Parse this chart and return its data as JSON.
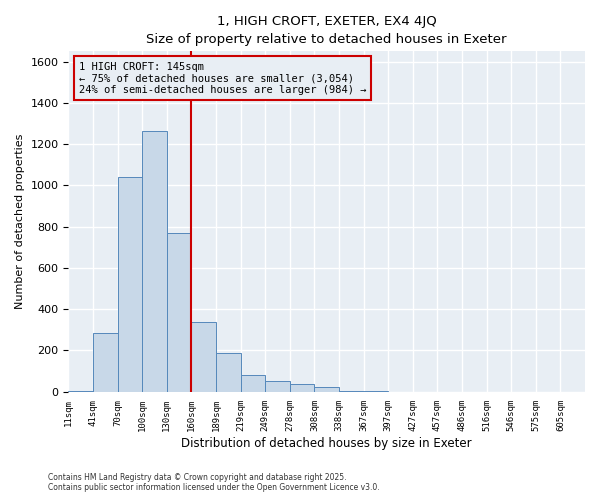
{
  "title": "1, HIGH CROFT, EXETER, EX4 4JQ",
  "subtitle": "Size of property relative to detached houses in Exeter",
  "xlabel": "Distribution of detached houses by size in Exeter",
  "ylabel": "Number of detached properties",
  "bin_labels": [
    "11sqm",
    "41sqm",
    "70sqm",
    "100sqm",
    "130sqm",
    "160sqm",
    "189sqm",
    "219sqm",
    "249sqm",
    "278sqm",
    "308sqm",
    "338sqm",
    "367sqm",
    "397sqm",
    "427sqm",
    "457sqm",
    "486sqm",
    "516sqm",
    "546sqm",
    "575sqm",
    "605sqm"
  ],
  "bar_heights": [
    5,
    285,
    1040,
    1265,
    770,
    335,
    185,
    80,
    50,
    35,
    22,
    5,
    1,
    0,
    0,
    0,
    0,
    0,
    0,
    0,
    0
  ],
  "bar_color": "#c8d8e8",
  "bar_edge_color": "#5588bb",
  "annotation_title": "1 HIGH CROFT: 145sqm",
  "annotation_line1": "← 75% of detached houses are smaller (3,054)",
  "annotation_line2": "24% of semi-detached houses are larger (984) →",
  "annotation_box_color": "#cc0000",
  "vline_color": "#cc0000",
  "ylim": [
    0,
    1650
  ],
  "yticks": [
    0,
    200,
    400,
    600,
    800,
    1000,
    1200,
    1400,
    1600
  ],
  "background_color": "#ffffff",
  "plot_bg_color": "#e8eef4",
  "grid_color": "#ffffff",
  "footer_line1": "Contains HM Land Registry data © Crown copyright and database right 2025.",
  "footer_line2": "Contains public sector information licensed under the Open Government Licence v3.0."
}
